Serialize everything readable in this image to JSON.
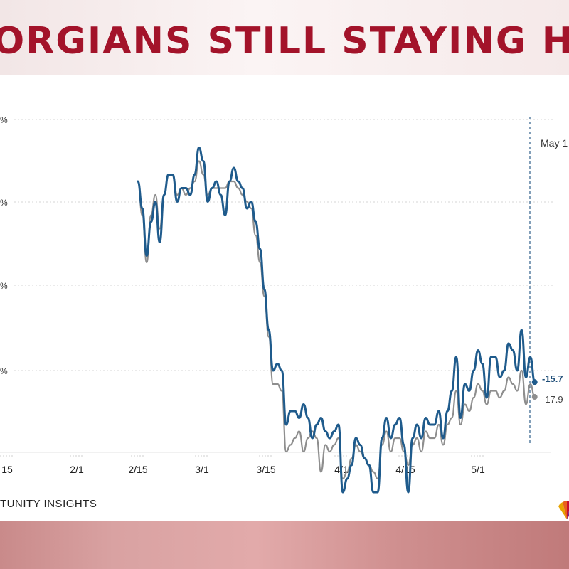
{
  "headline": "ORGIANS STILL STAYING HO",
  "source_label": "TUNITY INSIGHTS",
  "colors": {
    "headline": "#a3132a",
    "series_primary": "#1f5b8c",
    "series_secondary": "#8e8e8e",
    "grid": "#d6d6d6"
  },
  "logo_icon": "peacock-logo-icon",
  "chart_data": {
    "type": "line",
    "title": "",
    "xlabel": "",
    "ylabel": "",
    "x_tick_labels": [
      "15",
      "2/1",
      "2/15",
      "3/1",
      "3/15",
      "4/1",
      "4/15",
      "5/1"
    ],
    "y_tick_labels": [
      "%",
      "%",
      "%",
      "%"
    ],
    "grid": true,
    "x_start": "2020-01-15",
    "vline_label": "May 1",
    "series": [
      {
        "name": "",
        "end_label": "-15.7",
        "points": [
          [
            "2020-02-14",
            14
          ],
          [
            "2020-02-15",
            10
          ],
          [
            "2020-02-16",
            3
          ],
          [
            "2020-02-17",
            8
          ],
          [
            "2020-02-18",
            11
          ],
          [
            "2020-02-19",
            5
          ],
          [
            "2020-02-20",
            12
          ],
          [
            "2020-02-21",
            15
          ],
          [
            "2020-02-22",
            15
          ],
          [
            "2020-02-23",
            11
          ],
          [
            "2020-02-24",
            13
          ],
          [
            "2020-02-25",
            13
          ],
          [
            "2020-02-26",
            12
          ],
          [
            "2020-02-27",
            15
          ],
          [
            "2020-02-28",
            19
          ],
          [
            "2020-02-29",
            17
          ],
          [
            "2020-03-01",
            11
          ],
          [
            "2020-03-02",
            13
          ],
          [
            "2020-03-03",
            14
          ],
          [
            "2020-03-04",
            12
          ],
          [
            "2020-03-05",
            9
          ],
          [
            "2020-03-06",
            14
          ],
          [
            "2020-03-07",
            16
          ],
          [
            "2020-03-08",
            14
          ],
          [
            "2020-03-09",
            13
          ],
          [
            "2020-03-10",
            10
          ],
          [
            "2020-03-11",
            11
          ],
          [
            "2020-03-12",
            8
          ],
          [
            "2020-03-13",
            4
          ],
          [
            "2020-03-14",
            -2
          ],
          [
            "2020-03-15",
            -8
          ],
          [
            "2020-03-16",
            -14
          ],
          [
            "2020-03-17",
            -13
          ],
          [
            "2020-03-18",
            -14
          ],
          [
            "2020-03-19",
            -22
          ],
          [
            "2020-03-20",
            -20
          ],
          [
            "2020-03-21",
            -20
          ],
          [
            "2020-03-22",
            -21
          ],
          [
            "2020-03-23",
            -19
          ],
          [
            "2020-03-24",
            -21
          ],
          [
            "2020-03-25",
            -24
          ],
          [
            "2020-03-26",
            -22
          ],
          [
            "2020-03-27",
            -21
          ],
          [
            "2020-03-28",
            -23
          ],
          [
            "2020-03-29",
            -24
          ],
          [
            "2020-03-30",
            -23
          ],
          [
            "2020-03-31",
            -22
          ],
          [
            "2020-04-01",
            -32
          ],
          [
            "2020-04-02",
            -30
          ],
          [
            "2020-04-03",
            -28
          ],
          [
            "2020-04-04",
            -24
          ],
          [
            "2020-04-05",
            -25
          ],
          [
            "2020-04-06",
            -27
          ],
          [
            "2020-04-07",
            -28
          ],
          [
            "2020-04-08",
            -32
          ],
          [
            "2020-04-09",
            -32
          ],
          [
            "2020-04-10",
            -24
          ],
          [
            "2020-04-11",
            -21
          ],
          [
            "2020-04-12",
            -24
          ],
          [
            "2020-04-13",
            -22
          ],
          [
            "2020-04-14",
            -21
          ],
          [
            "2020-04-15",
            -25
          ],
          [
            "2020-04-16",
            -32
          ],
          [
            "2020-04-17",
            -24
          ],
          [
            "2020-04-18",
            -22
          ],
          [
            "2020-04-19",
            -24
          ],
          [
            "2020-04-20",
            -21
          ],
          [
            "2020-04-21",
            -22
          ],
          [
            "2020-04-22",
            -22
          ],
          [
            "2020-04-23",
            -20
          ],
          [
            "2020-04-24",
            -24
          ],
          [
            "2020-04-25",
            -20
          ],
          [
            "2020-04-26",
            -17
          ],
          [
            "2020-04-27",
            -12
          ],
          [
            "2020-04-28",
            -21
          ],
          [
            "2020-04-29",
            -16
          ],
          [
            "2020-04-30",
            -17
          ],
          [
            "2020-05-01",
            -14
          ],
          [
            "2020-05-02",
            -11
          ],
          [
            "2020-05-03",
            -13
          ],
          [
            "2020-05-04",
            -18
          ],
          [
            "2020-05-05",
            -12
          ],
          [
            "2020-05-06",
            -12
          ],
          [
            "2020-05-07",
            -15
          ],
          [
            "2020-05-08",
            -14
          ],
          [
            "2020-05-09",
            -10
          ],
          [
            "2020-05-10",
            -11
          ],
          [
            "2020-05-11",
            -14
          ],
          [
            "2020-05-12",
            -8
          ],
          [
            "2020-05-13",
            -15
          ],
          [
            "2020-05-14",
            -12
          ],
          [
            "2020-05-15",
            -15.7
          ]
        ]
      },
      {
        "name": "",
        "end_label": "-17.9",
        "points": [
          [
            "2020-02-14",
            14
          ],
          [
            "2020-02-15",
            9
          ],
          [
            "2020-02-16",
            2
          ],
          [
            "2020-02-17",
            9
          ],
          [
            "2020-02-18",
            12
          ],
          [
            "2020-02-19",
            7
          ],
          [
            "2020-02-20",
            12
          ],
          [
            "2020-02-21",
            15
          ],
          [
            "2020-02-22",
            15
          ],
          [
            "2020-02-23",
            12
          ],
          [
            "2020-02-24",
            13
          ],
          [
            "2020-02-25",
            12
          ],
          [
            "2020-02-26",
            13
          ],
          [
            "2020-02-27",
            14
          ],
          [
            "2020-02-28",
            17
          ],
          [
            "2020-02-29",
            15
          ],
          [
            "2020-03-01",
            12
          ],
          [
            "2020-03-02",
            13
          ],
          [
            "2020-03-03",
            13
          ],
          [
            "2020-03-04",
            13
          ],
          [
            "2020-03-05",
            13
          ],
          [
            "2020-03-06",
            14
          ],
          [
            "2020-03-07",
            14
          ],
          [
            "2020-03-08",
            13
          ],
          [
            "2020-03-09",
            12
          ],
          [
            "2020-03-10",
            11
          ],
          [
            "2020-03-11",
            10
          ],
          [
            "2020-03-12",
            6
          ],
          [
            "2020-03-13",
            2
          ],
          [
            "2020-03-14",
            -3
          ],
          [
            "2020-03-15",
            -9
          ],
          [
            "2020-03-16",
            -16
          ],
          [
            "2020-03-17",
            -16
          ],
          [
            "2020-03-18",
            -17
          ],
          [
            "2020-03-19",
            -26
          ],
          [
            "2020-03-20",
            -25
          ],
          [
            "2020-03-21",
            -24
          ],
          [
            "2020-03-22",
            -23
          ],
          [
            "2020-03-23",
            -26
          ],
          [
            "2020-03-24",
            -24
          ],
          [
            "2020-03-25",
            -23
          ],
          [
            "2020-03-26",
            -24
          ],
          [
            "2020-03-27",
            -29
          ],
          [
            "2020-03-28",
            -25
          ],
          [
            "2020-03-29",
            -26
          ],
          [
            "2020-03-30",
            -25
          ],
          [
            "2020-03-31",
            -24
          ],
          [
            "2020-04-01",
            -30
          ],
          [
            "2020-04-02",
            -29
          ],
          [
            "2020-04-03",
            -27
          ],
          [
            "2020-04-04",
            -25
          ],
          [
            "2020-04-05",
            -26
          ],
          [
            "2020-04-06",
            -27
          ],
          [
            "2020-04-07",
            -28
          ],
          [
            "2020-04-08",
            -29
          ],
          [
            "2020-04-09",
            -30
          ],
          [
            "2020-04-10",
            -25
          ],
          [
            "2020-04-11",
            -23
          ],
          [
            "2020-04-12",
            -26
          ],
          [
            "2020-04-13",
            -24
          ],
          [
            "2020-04-14",
            -24
          ],
          [
            "2020-04-15",
            -26
          ],
          [
            "2020-04-16",
            -28
          ],
          [
            "2020-04-17",
            -25
          ],
          [
            "2020-04-18",
            -24
          ],
          [
            "2020-04-19",
            -26
          ],
          [
            "2020-04-20",
            -23
          ],
          [
            "2020-04-21",
            -24
          ],
          [
            "2020-04-22",
            -24
          ],
          [
            "2020-04-23",
            -22
          ],
          [
            "2020-04-24",
            -25
          ],
          [
            "2020-04-25",
            -22
          ],
          [
            "2020-04-26",
            -21
          ],
          [
            "2020-04-27",
            -17
          ],
          [
            "2020-04-28",
            -22
          ],
          [
            "2020-04-29",
            -19
          ],
          [
            "2020-04-30",
            -20
          ],
          [
            "2020-05-01",
            -18
          ],
          [
            "2020-05-02",
            -16
          ],
          [
            "2020-05-03",
            -17
          ],
          [
            "2020-05-04",
            -19
          ],
          [
            "2020-05-05",
            -17
          ],
          [
            "2020-05-06",
            -17
          ],
          [
            "2020-05-07",
            -18
          ],
          [
            "2020-05-08",
            -17
          ],
          [
            "2020-05-09",
            -15
          ],
          [
            "2020-05-10",
            -16
          ],
          [
            "2020-05-11",
            -17
          ],
          [
            "2020-05-12",
            -14
          ],
          [
            "2020-05-13",
            -19
          ],
          [
            "2020-05-14",
            -16
          ],
          [
            "2020-05-15",
            -17.9
          ]
        ]
      }
    ]
  }
}
